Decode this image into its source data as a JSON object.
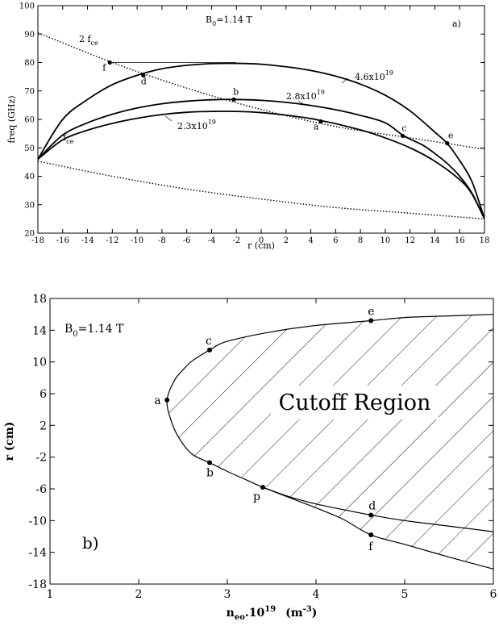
{
  "chart_data": [
    {
      "id": "a",
      "type": "line",
      "panel_label": "a)",
      "annotation_field": "B",
      "annotation_field_sub": "0",
      "annotation_field_value": "=1.14 T",
      "xlabel": "r (cm)",
      "ylabel": "freq (GHz)",
      "xlim": [
        -18,
        18
      ],
      "ylim": [
        20,
        100
      ],
      "xticks": [
        -18,
        -16,
        -14,
        -12,
        -10,
        -8,
        -6,
        -4,
        -2,
        0,
        2,
        4,
        6,
        8,
        10,
        12,
        14,
        16,
        18
      ],
      "yticks": [
        20,
        30,
        40,
        50,
        60,
        70,
        80,
        90,
        100
      ],
      "curve_labels": {
        "fce2": {
          "base": "2 f",
          "sub": "ce"
        },
        "fce": {
          "base": "f",
          "sub": "ce"
        },
        "n46": {
          "base": "4.6x10",
          "sup": "19"
        },
        "n28": {
          "base": "2.8x10",
          "sup": "19"
        },
        "n23": {
          "base": "2.3x10",
          "sup": "19"
        }
      },
      "series": [
        {
          "key": "fce2",
          "style": "dotted",
          "points": [
            [
              -18,
              90.5
            ],
            [
              -12,
              80
            ],
            [
              -6,
              71
            ],
            [
              0,
              63.5
            ],
            [
              6,
              57.5
            ],
            [
              12,
              53.5
            ],
            [
              18,
              49.5
            ]
          ]
        },
        {
          "key": "fce",
          "style": "dotted",
          "points": [
            [
              -18,
              45.3
            ],
            [
              -12,
              40
            ],
            [
              -6,
              35.5
            ],
            [
              0,
              32
            ],
            [
              6,
              29
            ],
            [
              12,
              27
            ],
            [
              18,
              25
            ]
          ]
        },
        {
          "key": "n46",
          "style": "solid",
          "points": [
            [
              -18,
              46
            ],
            [
              -16,
              60
            ],
            [
              -14,
              67
            ],
            [
              -12,
              72.2
            ],
            [
              -10,
              75.5
            ],
            [
              -8,
              77.8
            ],
            [
              -6,
              79
            ],
            [
              -4,
              79.6
            ],
            [
              -2,
              79.7
            ],
            [
              0,
              79.4
            ],
            [
              2,
              78.5
            ],
            [
              4,
              77.2
            ],
            [
              6,
              75.2
            ],
            [
              8,
              72.4
            ],
            [
              10,
              68.5
            ],
            [
              12,
              63
            ],
            [
              14,
              55.5
            ],
            [
              15,
              51.5
            ],
            [
              16,
              45.5
            ],
            [
              17,
              38
            ],
            [
              18,
              25
            ]
          ]
        },
        {
          "key": "n28",
          "style": "solid",
          "points": [
            [
              -18,
              46
            ],
            [
              -16,
              54.5
            ],
            [
              -14,
              58.8
            ],
            [
              -12,
              61.8
            ],
            [
              -10,
              64
            ],
            [
              -8,
              65.5
            ],
            [
              -6,
              66.4
            ],
            [
              -4,
              66.9
            ],
            [
              -2.2,
              67
            ],
            [
              0,
              66.7
            ],
            [
              2,
              66
            ],
            [
              4,
              64.9
            ],
            [
              6,
              63.4
            ],
            [
              8,
              61.4
            ],
            [
              10,
              58.8
            ],
            [
              11.5,
              54.2
            ],
            [
              13,
              51
            ],
            [
              14,
              48
            ],
            [
              15,
              44.5
            ],
            [
              16,
              40
            ],
            [
              17,
              34
            ],
            [
              18,
              25
            ]
          ]
        },
        {
          "key": "n23",
          "style": "solid",
          "points": [
            [
              -18,
              46
            ],
            [
              -16,
              52.8
            ],
            [
              -14,
              56.2
            ],
            [
              -12,
              58.6
            ],
            [
              -10,
              60.4
            ],
            [
              -8,
              61.7
            ],
            [
              -6,
              62.5
            ],
            [
              -4,
              62.8
            ],
            [
              -2,
              62.8
            ],
            [
              0,
              62.4
            ],
            [
              2,
              61.5
            ],
            [
              4,
              60.3
            ],
            [
              5,
              59.4
            ],
            [
              6,
              58.5
            ],
            [
              8,
              56.3
            ],
            [
              10,
              53.5
            ],
            [
              12,
              50
            ],
            [
              14,
              45.3
            ],
            [
              16,
              38.8
            ],
            [
              17,
              33.7
            ],
            [
              18,
              25
            ]
          ]
        },
        {
          "key": "hline",
          "style": "solid-thin",
          "points": [
            [
              -12.2,
              80
            ],
            [
              -2,
              80
            ]
          ]
        }
      ],
      "points": [
        {
          "label": "f",
          "x": -12.2,
          "y": 80
        },
        {
          "label": "d",
          "x": -9.5,
          "y": 75.5
        },
        {
          "label": "b",
          "x": -2.2,
          "y": 67
        },
        {
          "label": "a",
          "x": 4.8,
          "y": 59.3
        },
        {
          "label": "c",
          "x": 11.4,
          "y": 54.2
        },
        {
          "label": "e",
          "x": 15,
          "y": 51.6
        }
      ]
    },
    {
      "id": "b",
      "type": "line",
      "panel_label": "b)",
      "annotation_field": "B",
      "annotation_field_sub": "0",
      "annotation_field_value": "=1.14 T",
      "region_label": "Cutoff  Region",
      "xlabel_parts": {
        "base": "n",
        "sub": "eo",
        "mid": ".10",
        "sup": "19",
        "unit_open": "(m",
        "unit_sup": "-3",
        "unit_close": ")"
      },
      "ylabel": "r (cm)",
      "xlim": [
        1,
        6
      ],
      "ylim": [
        -18,
        18
      ],
      "xticks": [
        1,
        2,
        3,
        4,
        5,
        6
      ],
      "yticks": [
        -18,
        -14,
        -10,
        -6,
        -2,
        2,
        6,
        10,
        14,
        18
      ],
      "series": [
        {
          "key": "boundary",
          "style": "solid",
          "points": [
            [
              6,
              16
            ],
            [
              5.5,
              15.8
            ],
            [
              5,
              15.6
            ],
            [
              4.62,
              15.2
            ],
            [
              4,
              14.6
            ],
            [
              3.5,
              13.8
            ],
            [
              3,
              12.6
            ],
            [
              2.8,
              11.5
            ],
            [
              2.6,
              10.1
            ],
            [
              2.5,
              9
            ],
            [
              2.4,
              7.6
            ],
            [
              2.32,
              5.2
            ],
            [
              2.36,
              2.8
            ],
            [
              2.45,
              0.5
            ],
            [
              2.6,
              -1.6
            ],
            [
              2.8,
              -2.7
            ],
            [
              3,
              -3.8
            ],
            [
              3.2,
              -4.8
            ],
            [
              3.4,
              -5.8
            ],
            [
              3.7,
              -7.1
            ],
            [
              4,
              -8.4
            ],
            [
              4.3,
              -9.8
            ],
            [
              4.62,
              -11.8
            ],
            [
              5,
              -13
            ],
            [
              5.5,
              -14.6
            ],
            [
              6,
              -16.1
            ]
          ]
        },
        {
          "key": "branch",
          "style": "solid",
          "points": [
            [
              3.4,
              -5.8
            ],
            [
              3.7,
              -7
            ],
            [
              4,
              -7.9
            ],
            [
              4.3,
              -8.6
            ],
            [
              4.62,
              -9.3
            ],
            [
              5,
              -10
            ],
            [
              5.5,
              -10.7
            ],
            [
              6,
              -11.4
            ]
          ]
        }
      ],
      "points": [
        {
          "label": "e",
          "x": 4.62,
          "y": 15.2
        },
        {
          "label": "c",
          "x": 2.8,
          "y": 11.5
        },
        {
          "label": "a",
          "x": 2.32,
          "y": 5.2
        },
        {
          "label": "b",
          "x": 2.8,
          "y": -2.7
        },
        {
          "label": "p",
          "x": 3.4,
          "y": -5.8
        },
        {
          "label": "d",
          "x": 4.62,
          "y": -9.3
        },
        {
          "label": "f",
          "x": 4.62,
          "y": -11.8
        }
      ]
    }
  ]
}
